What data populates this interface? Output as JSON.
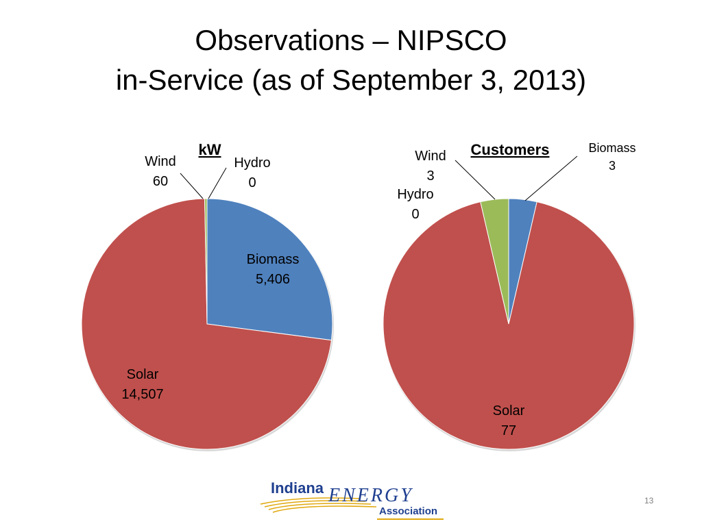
{
  "slide": {
    "title_line1": "Observations – NIPSCO",
    "title_line2": "in-Service (as of September 3, 2013)",
    "page_number": "13"
  },
  "logo": {
    "text_indiana": "Indiana",
    "text_energy": "ENERGY",
    "text_association": "Association",
    "color": "#1f3f8f",
    "swoosh_color": "#e0a80e"
  },
  "colors": {
    "Biomass": "#4f81bd",
    "Solar": "#c0504d",
    "Wind": "#9bbb59",
    "Hydro": "#8064a2"
  },
  "chart_data": [
    {
      "type": "pie",
      "title": "kW",
      "categories": [
        "Biomass",
        "Solar",
        "Wind",
        "Hydro"
      ],
      "values": [
        5406,
        14507,
        60,
        0
      ],
      "value_labels": [
        "5,406",
        "14,507",
        "60",
        "0"
      ]
    },
    {
      "type": "pie",
      "title": "Customers",
      "categories": [
        "Biomass",
        "Solar",
        "Wind",
        "Hydro"
      ],
      "values": [
        3,
        77,
        3,
        0
      ],
      "value_labels": [
        "3",
        "77",
        "3",
        "0"
      ]
    }
  ]
}
